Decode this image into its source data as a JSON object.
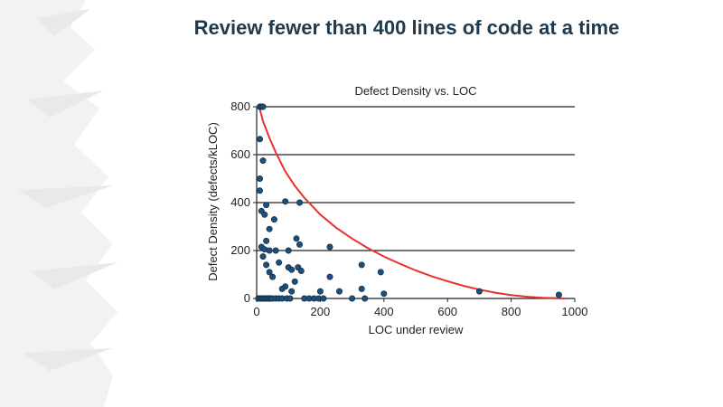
{
  "slide": {
    "title": "Review fewer than 400 lines of code at a time"
  },
  "colors": {
    "title": "#1f3a4d",
    "point_fill": "#1f4e79",
    "curve": "#e8312f",
    "grid": "#222222",
    "brush": "#f2f2f2"
  },
  "chart_data": {
    "type": "scatter",
    "title": "Defect Density vs. LOC",
    "xlabel": "LOC under review",
    "ylabel": "Defect Density (defects/kLOC)",
    "xlim": [
      0,
      1000
    ],
    "ylim": [
      0,
      800
    ],
    "xticks": [
      0,
      200,
      400,
      600,
      800,
      1000
    ],
    "yticks": [
      0,
      200,
      400,
      600,
      800
    ],
    "grid": "horizontal",
    "series": [
      {
        "points": [
          [
            10,
            800
          ],
          [
            15,
            800
          ],
          [
            20,
            800
          ],
          [
            10,
            665
          ],
          [
            20,
            575
          ],
          [
            10,
            500
          ],
          [
            10,
            450
          ],
          [
            15,
            365
          ],
          [
            25,
            350
          ],
          [
            30,
            390
          ],
          [
            55,
            330
          ],
          [
            40,
            290
          ],
          [
            90,
            405
          ],
          [
            135,
            400
          ],
          [
            15,
            215
          ],
          [
            25,
            205
          ],
          [
            40,
            200
          ],
          [
            30,
            240
          ],
          [
            20,
            175
          ],
          [
            30,
            140
          ],
          [
            40,
            110
          ],
          [
            50,
            90
          ],
          [
            60,
            200
          ],
          [
            70,
            150
          ],
          [
            100,
            200
          ],
          [
            125,
            250
          ],
          [
            135,
            225
          ],
          [
            100,
            130
          ],
          [
            110,
            120
          ],
          [
            120,
            70
          ],
          [
            130,
            130
          ],
          [
            140,
            115
          ],
          [
            90,
            50
          ],
          [
            80,
            40
          ],
          [
            110,
            30
          ],
          [
            230,
            215
          ],
          [
            230,
            90
          ],
          [
            260,
            30
          ],
          [
            330,
            140
          ],
          [
            330,
            40
          ],
          [
            390,
            110
          ],
          [
            400,
            20
          ],
          [
            200,
            30
          ],
          [
            700,
            30
          ],
          [
            950,
            15
          ],
          [
            5,
            0
          ],
          [
            10,
            0
          ],
          [
            15,
            0
          ],
          [
            20,
            0
          ],
          [
            25,
            0
          ],
          [
            30,
            0
          ],
          [
            35,
            0
          ],
          [
            40,
            0
          ],
          [
            45,
            0
          ],
          [
            50,
            0
          ],
          [
            60,
            0
          ],
          [
            70,
            0
          ],
          [
            80,
            0
          ],
          [
            95,
            0
          ],
          [
            105,
            0
          ],
          [
            150,
            0
          ],
          [
            165,
            0
          ],
          [
            180,
            0
          ],
          [
            195,
            0
          ],
          [
            210,
            0
          ],
          [
            300,
            0
          ],
          [
            340,
            0
          ]
        ]
      }
    ],
    "curve": {
      "x": [
        10,
        20,
        40,
        60,
        90,
        120,
        150,
        200,
        250,
        300,
        350,
        400,
        450,
        500,
        550,
        600,
        650,
        700,
        750,
        800,
        850,
        900,
        950,
        970
      ],
      "y": [
        790,
        740,
        670,
        610,
        530,
        470,
        420,
        350,
        295,
        250,
        210,
        175,
        145,
        117,
        93,
        72,
        53,
        37,
        24,
        14,
        7,
        3,
        1,
        0
      ]
    }
  }
}
